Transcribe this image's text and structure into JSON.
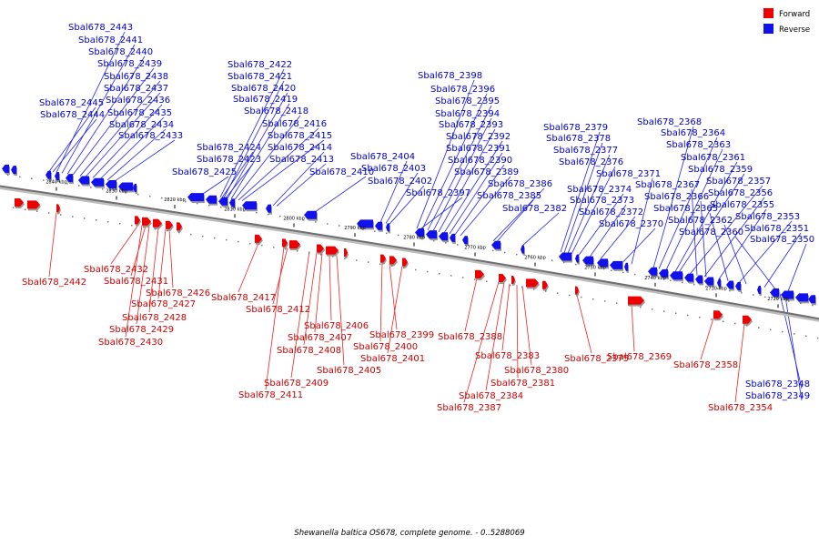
{
  "legend": [
    {
      "label": "Forward",
      "color": "#ee0000"
    },
    {
      "label": "Reverse",
      "color": "#1111ee"
    }
  ],
  "caption": "Shewanella baltica OS678, complete genome. - 0..5288069",
  "colors": {
    "forward": "#ee0000",
    "reverse": "#1111ee",
    "forward_label": "#cc0000",
    "reverse_label": "#0000cc",
    "axis": "#888888"
  },
  "ticks": [
    "2840 kbp",
    "2830 kbp",
    "2820 kbp",
    "2810 kbp",
    "2800 kbp",
    "2790 kbp",
    "2780 kbp",
    "2770 kbp",
    "2760 kbp",
    "2750 kbp",
    "2740 kbp",
    "2730 kbp",
    "2720 kbp"
  ],
  "reverse_genes": [
    "Sbal678_2443",
    "Sbal678_2441",
    "Sbal678_2440",
    "Sbal678_2439",
    "Sbal678_2438",
    "Sbal678_2437",
    "Sbal678_2436",
    "Sbal678_2435",
    "Sbal678_2434",
    "Sbal678_2433",
    "Sbal678_2445",
    "Sbal678_2444",
    "Sbal678_2422",
    "Sbal678_2421",
    "Sbal678_2420",
    "Sbal678_2419",
    "Sbal678_2418",
    "Sbal678_2416",
    "Sbal678_2415",
    "Sbal678_2414",
    "Sbal678_2413",
    "Sbal678_2424",
    "Sbal678_2423",
    "Sbal678_2425",
    "Sbal678_2410",
    "Sbal678_2404",
    "Sbal678_2403",
    "Sbal678_2402",
    "Sbal678_2398",
    "Sbal678_2396",
    "Sbal678_2395",
    "Sbal678_2394",
    "Sbal678_2393",
    "Sbal678_2392",
    "Sbal678_2391",
    "Sbal678_2390",
    "Sbal678_2389",
    "Sbal678_2386",
    "Sbal678_2397",
    "Sbal678_2385",
    "Sbal678_2382",
    "Sbal678_2379",
    "Sbal678_2378",
    "Sbal678_2377",
    "Sbal678_2376",
    "Sbal678_2371",
    "Sbal678_2374",
    "Sbal678_2373",
    "Sbal678_2372",
    "Sbal678_2370",
    "Sbal678_2368",
    "Sbal678_2364",
    "Sbal678_2363",
    "Sbal678_2361",
    "Sbal678_2359",
    "Sbal678_2357",
    "Sbal678_2367",
    "Sbal678_2356",
    "Sbal678_2366",
    "Sbal678_2355",
    "Sbal678_2365",
    "Sbal678_2353",
    "Sbal678_2362",
    "Sbal678_2351",
    "Sbal678_2360",
    "Sbal678_2350",
    "Sbal678_2348",
    "Sbal678_2349"
  ],
  "forward_genes": [
    "Sbal678_2442",
    "Sbal678_2432",
    "Sbal678_2431",
    "Sbal678_2426",
    "Sbal678_2427",
    "Sbal678_2428",
    "Sbal678_2429",
    "Sbal678_2430",
    "Sbal678_2417",
    "Sbal678_2412",
    "Sbal678_2406",
    "Sbal678_2407",
    "Sbal678_2408",
    "Sbal678_2405",
    "Sbal678_2409",
    "Sbal678_2411",
    "Sbal678_2399",
    "Sbal678_2400",
    "Sbal678_2401",
    "Sbal678_2388",
    "Sbal678_2383",
    "Sbal678_2380",
    "Sbal678_2381",
    "Sbal678_2384",
    "Sbal678_2387",
    "Sbal678_2375",
    "Sbal678_2369",
    "Sbal678_2358",
    "Sbal678_2354"
  ]
}
